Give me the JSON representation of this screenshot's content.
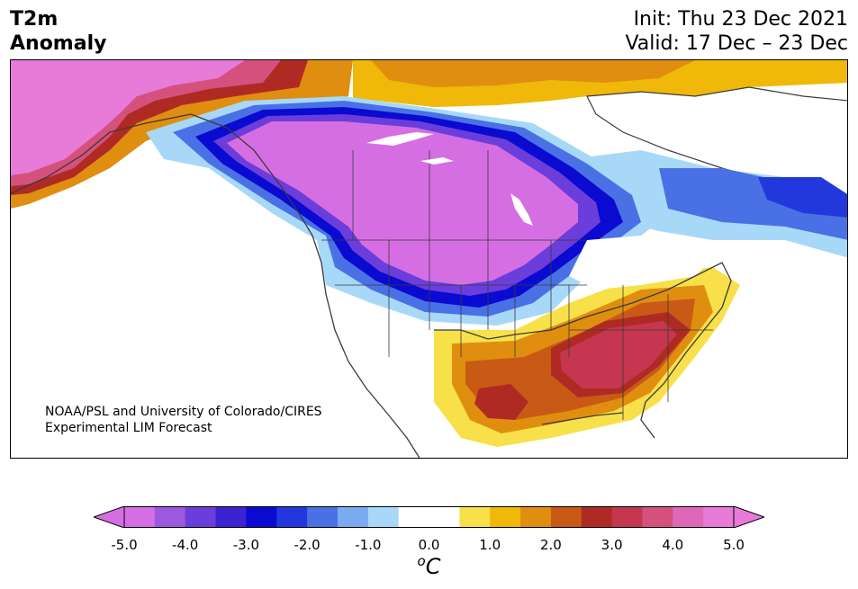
{
  "title": {
    "line1": "T2m",
    "line2": "Anomaly"
  },
  "info": {
    "init": "Init: Thu 23 Dec 2021",
    "valid": "Valid: 17 Dec – 23 Dec"
  },
  "credit": {
    "line1": "NOAA/PSL and University of Colorado/CIRES",
    "line2": "Experimental LIM Forecast"
  },
  "colorbar": {
    "ticks": [
      "-5.0",
      "-4.0",
      "-3.0",
      "-2.0",
      "-1.0",
      "0.0",
      "1.0",
      "2.0",
      "3.0",
      "4.0",
      "5.0"
    ],
    "unit_sup": "o",
    "unit_main": "C",
    "colors": [
      "#d66ee3",
      "#9b59e0",
      "#6b3ddb",
      "#3c22d0",
      "#0a0ad0",
      "#2238dc",
      "#4a70e6",
      "#7aaaf0",
      "#a8d8f8",
      "#ffffff",
      "#ffffff",
      "#f8e04a",
      "#f0b808",
      "#e08e10",
      "#c85a16",
      "#b02a24",
      "#c63650",
      "#d6507e",
      "#de68b8",
      "#e87ad8"
    ],
    "extend_min_color": "#d66ee3",
    "extend_max_color": "#e87ad8"
  }
}
